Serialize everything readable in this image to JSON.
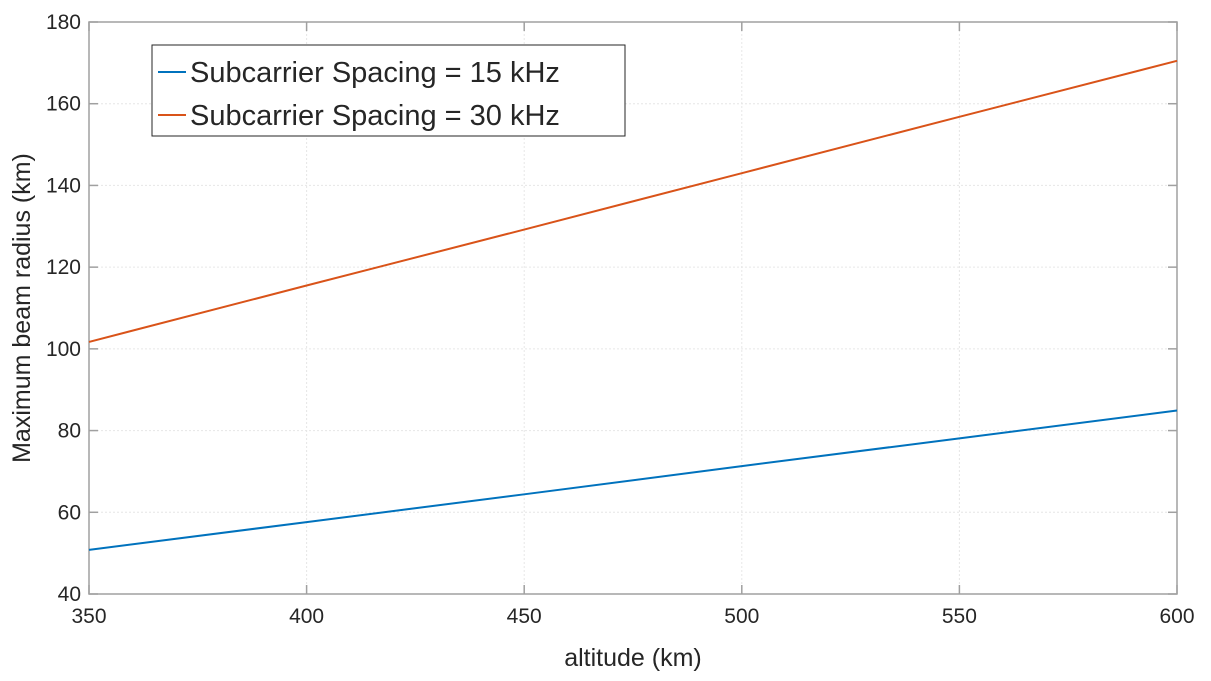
{
  "chart_data": {
    "type": "line",
    "title": "",
    "xlabel": "altitude (km)",
    "ylabel": "Maximum beam radius (km)",
    "xlim": [
      350,
      600
    ],
    "ylim": [
      40,
      180
    ],
    "xticks": [
      350,
      400,
      450,
      500,
      550,
      600
    ],
    "yticks": [
      40,
      60,
      80,
      100,
      120,
      140,
      160,
      180
    ],
    "grid": true,
    "legend_position": "top-left",
    "x": [
      350,
      400,
      450,
      500,
      550,
      600
    ],
    "series": [
      {
        "name": "Subcarrier Spacing = 15 kHz",
        "color": "#0072BD",
        "values": [
          50.8,
          57.6,
          64.4,
          71.3,
          78.1,
          84.9
        ]
      },
      {
        "name": "Subcarrier Spacing = 30 kHz",
        "color": "#D95319",
        "values": [
          101.7,
          115.5,
          129.2,
          143.0,
          156.8,
          170.5
        ]
      }
    ]
  }
}
